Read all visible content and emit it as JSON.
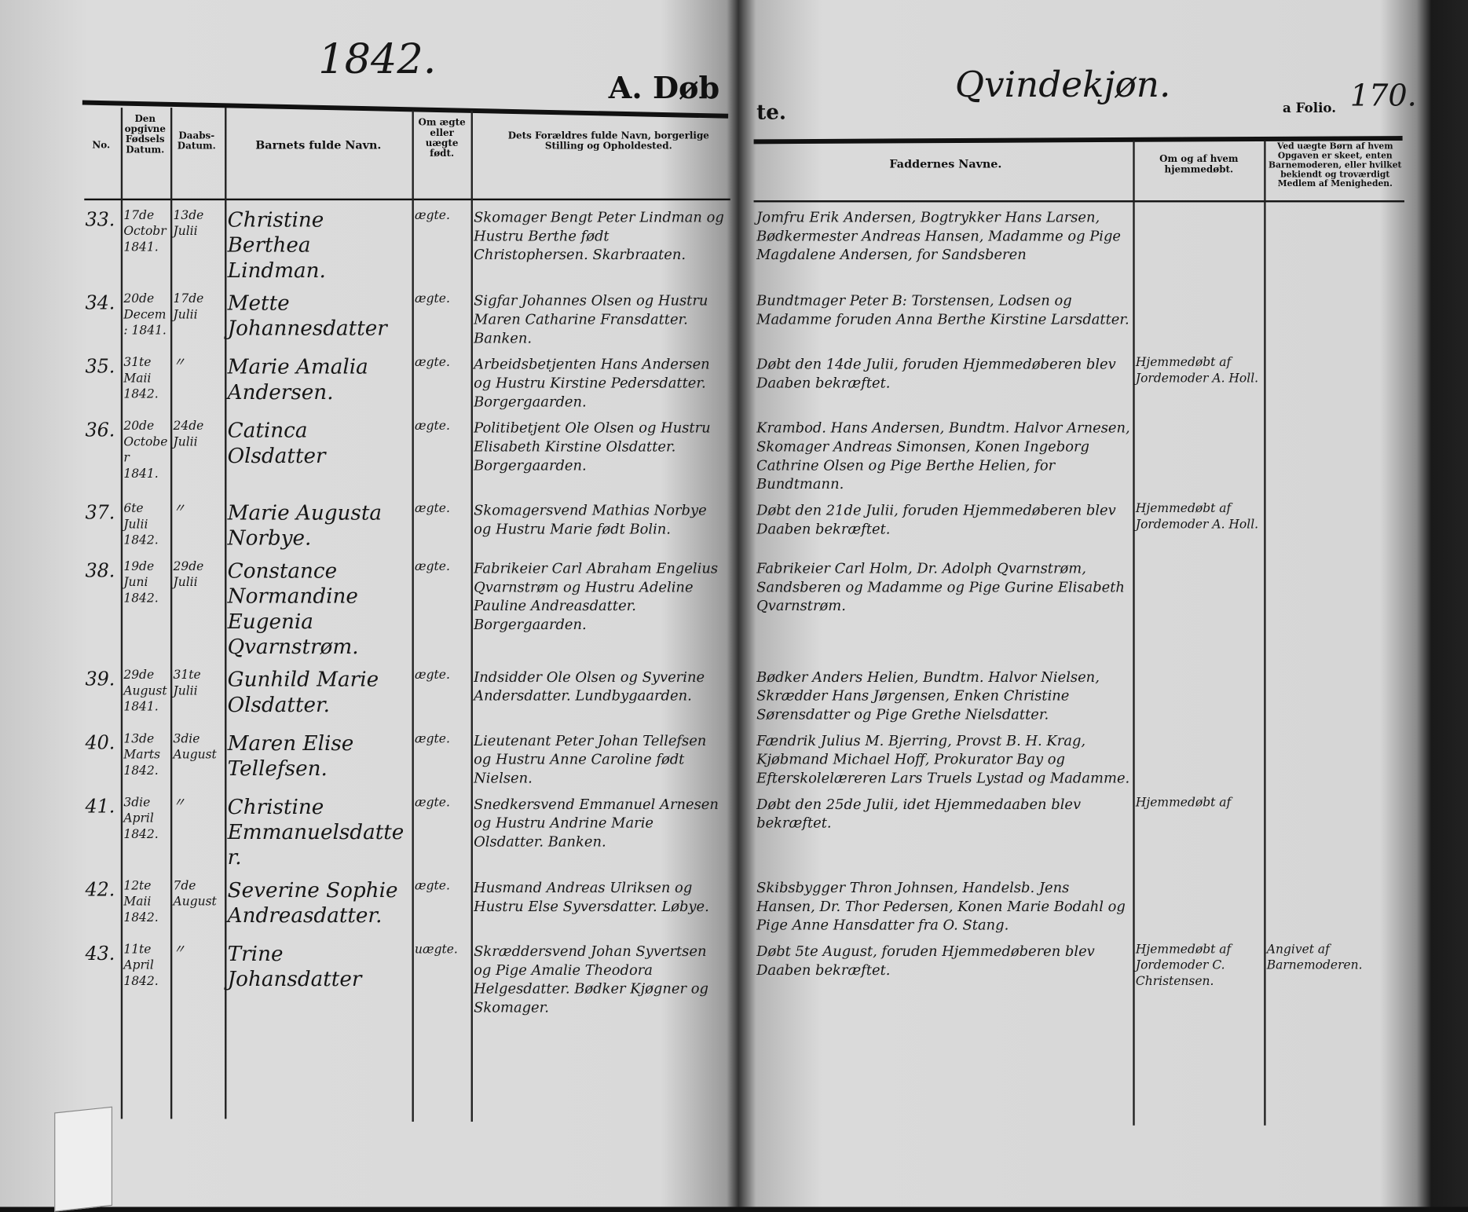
{
  "header": {
    "year": "1842.",
    "section_left": "A. Døb",
    "section_right": "te.",
    "gender": "Qvindekjøn.",
    "folio_label": "a Folio.",
    "folio_number": "170."
  },
  "columns": {
    "no": "No.",
    "birth_date": "Den opgivne Fødsels Datum.",
    "baptism_date": "Daabs-Datum.",
    "child_name": "Barnets fulde Navn.",
    "legitimacy": "Om ægte eller uægte født.",
    "parents": "Dets Forældres fulde Navn, borgerlige Stilling og Opholdested.",
    "sponsors": "Faddernes Navne.",
    "home_baptism": "Om og af hvem hjemmedøbt.",
    "illegitimate_note": "Ved uægte Børn af hvem Opgaven er skeet, enten Barnemoderen, eller hvilket bekiendt og troværdigt Medlem af Menigheden."
  },
  "entries": [
    {
      "no": "33.",
      "birth": "17de Octobr 1841.",
      "baptism": "13de Julii",
      "name": "Christine Berthea Lindman.",
      "legit": "ægte.",
      "parents": "Skomager Bengt Peter Lindman og Hustru Berthe født Christophersen. Skarbraaten.",
      "sponsors": "Jomfru Erik Andersen, Bogtrykker Hans Larsen, Bødkermester Andreas Hansen, Madamme og Pige Magdalene Andersen, for Sandsberen",
      "home": "",
      "note": ""
    },
    {
      "no": "34.",
      "birth": "20de Decem: 1841.",
      "baptism": "17de Julii",
      "name": "Mette Johannesdatter",
      "legit": "ægte.",
      "parents": "Sigfar Johannes Olsen og Hustru Maren Catharine Fransdatter. Banken.",
      "sponsors": "Bundtmager Peter B: Torstensen, Lodsen og Madamme foruden Anna Berthe Kirstine Larsdatter.",
      "home": "",
      "note": ""
    },
    {
      "no": "35.",
      "birth": "31te Maii 1842.",
      "baptism": "〃",
      "name": "Marie Amalia Andersen.",
      "legit": "ægte.",
      "parents": "Arbeidsbetjenten Hans Andersen og Hustru Kirstine Pedersdatter. Borgergaarden.",
      "sponsors": "Døbt den 14de Julii, foruden Hjemmedøberen blev Daaben bekræftet.",
      "home": "Hjemmedøbt af Jordemoder A. Holl.",
      "note": ""
    },
    {
      "no": "36.",
      "birth": "20de October 1841.",
      "baptism": "24de Julii",
      "name": "Catinca Olsdatter",
      "legit": "ægte.",
      "parents": "Politibetjent Ole Olsen og Hustru Elisabeth Kirstine Olsdatter. Borgergaarden.",
      "sponsors": "Krambod. Hans Andersen, Bundtm. Halvor Arnesen, Skomager Andreas Simonsen, Konen Ingeborg Cathrine Olsen og Pige Berthe Helien, for Bundtmann.",
      "home": "",
      "note": ""
    },
    {
      "no": "37.",
      "birth": "6te Julii 1842.",
      "baptism": "〃",
      "name": "Marie Augusta Norbye.",
      "legit": "ægte.",
      "parents": "Skomagersvend Mathias Norbye og Hustru Marie født Bolin.",
      "sponsors": "Døbt den 21de Julii, foruden Hjemmedøberen blev Daaben bekræftet.",
      "home": "Hjemmedøbt af Jordemoder A. Holl.",
      "note": ""
    },
    {
      "no": "38.",
      "birth": "19de Juni 1842.",
      "baptism": "29de Julii",
      "name": "Constance Normandine Eugenia Qvarnstrøm.",
      "legit": "ægte.",
      "parents": "Fabrikeier Carl Abraham Engelius Qvarnstrøm og Hustru Adeline Pauline Andreasdatter. Borgergaarden.",
      "sponsors": "Fabrikeier Carl Holm, Dr. Adolph Qvarnstrøm, Sandsberen og Madamme og Pige Gurine Elisabeth Qvarnstrøm.",
      "home": "",
      "note": ""
    },
    {
      "no": "39.",
      "birth": "29de August 1841.",
      "baptism": "31te Julii",
      "name": "Gunhild Marie Olsdatter.",
      "legit": "ægte.",
      "parents": "Indsidder Ole Olsen og Syverine Andersdatter. Lundbygaarden.",
      "sponsors": "Bødker Anders Helien, Bundtm. Halvor Nielsen, Skrædder Hans Jørgensen, Enken Christine Sørensdatter og Pige Grethe Nielsdatter.",
      "home": "",
      "note": ""
    },
    {
      "no": "40.",
      "birth": "13de Marts 1842.",
      "baptism": "3die August",
      "name": "Maren Elise Tellefsen.",
      "legit": "ægte.",
      "parents": "Lieutenant Peter Johan Tellefsen og Hustru Anne Caroline født Nielsen.",
      "sponsors": "Fændrik Julius M. Bjerring, Provst B. H. Krag, Kjøbmand Michael Hoff, Prokurator Bay og Efterskolelæreren Lars Truels Lystad og Madamme.",
      "home": "",
      "note": ""
    },
    {
      "no": "41.",
      "birth": "3die April 1842.",
      "baptism": "〃",
      "name": "Christine Emmanuelsdatter.",
      "legit": "ægte.",
      "parents": "Snedkersvend Emmanuel Arnesen og Hustru Andrine Marie Olsdatter. Banken.",
      "sponsors": "Døbt den 25de Julii, idet Hjemmedaaben blev bekræftet.",
      "home": "Hjemmedøbt af",
      "note": ""
    },
    {
      "no": "42.",
      "birth": "12te Maii 1842.",
      "baptism": "7de August",
      "name": "Severine Sophie Andreasdatter.",
      "legit": "ægte.",
      "parents": "Husmand Andreas Ulriksen og Hustru Else Syversdatter. Løbye.",
      "sponsors": "Skibsbygger Thron Johnsen, Handelsb. Jens Hansen, Dr. Thor Pedersen, Konen Marie Bodahl og Pige Anne Hansdatter fra O. Stang.",
      "home": "",
      "note": ""
    },
    {
      "no": "43.",
      "birth": "11te April 1842.",
      "baptism": "〃",
      "name": "Trine Johansdatter",
      "legit": "uægte.",
      "parents": "Skræddersvend Johan Syvertsen og Pige Amalie Theodora Helgesdatter. Bødker Kjøgner og Skomager.",
      "sponsors": "Døbt 5te August, foruden Hjemmedøberen blev Daaben bekræftet.",
      "home": "Hjemmedøbt af Jordemoder C. Christensen.",
      "note": "Angivet af Barnemoderen."
    }
  ]
}
